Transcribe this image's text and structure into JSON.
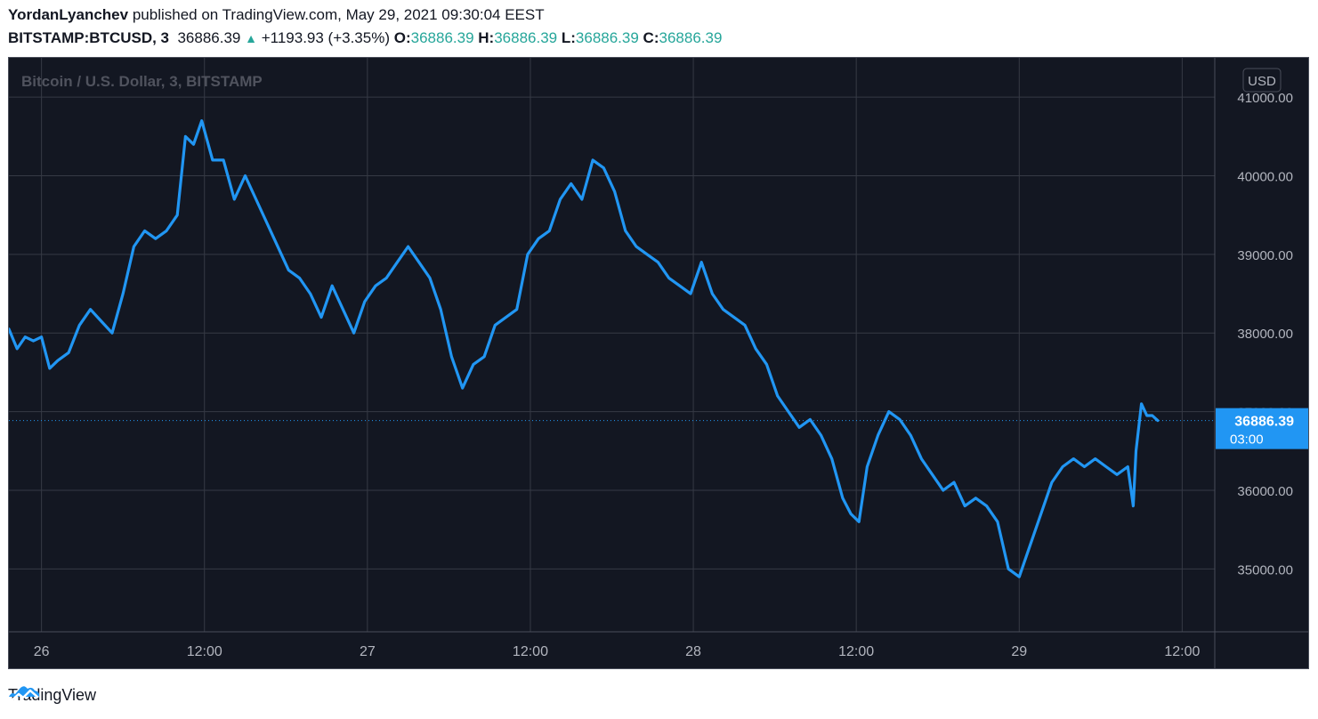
{
  "header": {
    "author": "YordanLyanchev",
    "published_text": "published on TradingView.com, May 29, 2021 09:30:04 EEST",
    "symbol": "BITSTAMP:BTCUSD, 3",
    "last": "36886.39",
    "change": "+1193.93 (+3.35%)",
    "open_label": "O:",
    "open": "36886.39",
    "high_label": "H:",
    "high": "36886.39",
    "low_label": "L:",
    "low": "36886.39",
    "close_label": "C:",
    "close": "36886.39"
  },
  "footer": {
    "brand": "TradingView"
  },
  "colors": {
    "line": "#2196f3",
    "background": "#131722",
    "grid": "#363a45",
    "up": "#26a69a"
  },
  "chart_data": {
    "type": "line",
    "title": "Bitcoin / U.S. Dollar, 3, BITSTAMP",
    "currency_badge": "USD",
    "ylim": [
      34200,
      41500
    ],
    "y_ticks": [
      35000,
      36000,
      37000,
      38000,
      39000,
      40000,
      41000
    ],
    "y_tick_labels": [
      "35000.00",
      "36000.00",
      "37000.00",
      "38000.00",
      "39000.00",
      "40000.00",
      "41000.00"
    ],
    "x_ticks": [
      "26",
      "12:00",
      "27",
      "12:00",
      "28",
      "12:00",
      "29",
      "12:00"
    ],
    "x_tick_hours": [
      24,
      36,
      48,
      60,
      72,
      84,
      96,
      108
    ],
    "x_range_hours": [
      21.6,
      110.4
    ],
    "last_price": 36886.39,
    "last_label": "36886.39",
    "countdown": "03:00",
    "x_hours": [
      21.6,
      22.2,
      22.8,
      23.4,
      24.0,
      24.6,
      25.2,
      26.0,
      26.8,
      27.6,
      28.4,
      29.2,
      30.0,
      30.8,
      31.6,
      32.4,
      33.2,
      34.0,
      34.6,
      35.2,
      35.8,
      36.6,
      37.4,
      38.2,
      39.0,
      39.8,
      40.6,
      41.4,
      42.2,
      43.0,
      43.8,
      44.6,
      45.4,
      46.2,
      47.0,
      47.8,
      48.6,
      49.4,
      50.2,
      51.0,
      51.8,
      52.6,
      53.4,
      54.2,
      55.0,
      55.8,
      56.6,
      57.4,
      58.2,
      59.0,
      59.8,
      60.6,
      61.4,
      62.2,
      63.0,
      63.8,
      64.6,
      65.4,
      66.2,
      67.0,
      67.8,
      68.6,
      69.4,
      70.2,
      71.0,
      71.8,
      72.6,
      73.4,
      74.2,
      75.0,
      75.8,
      76.6,
      77.4,
      78.2,
      79.0,
      79.8,
      80.6,
      81.4,
      82.2,
      83.0,
      83.6,
      84.2,
      84.8,
      85.6,
      86.4,
      87.2,
      88.0,
      88.8,
      89.6,
      90.4,
      91.2,
      92.0,
      92.8,
      93.6,
      94.4,
      95.2,
      96.0,
      96.8,
      97.6,
      98.4,
      99.2,
      100.0,
      100.8,
      101.6,
      102.4,
      103.2,
      104.0,
      104.4,
      104.6,
      105.0,
      105.4,
      105.8,
      106.2
    ],
    "values": [
      38050,
      37800,
      37950,
      37900,
      37950,
      37550,
      37650,
      37750,
      38100,
      38300,
      38150,
      38000,
      38500,
      39100,
      39300,
      39200,
      39300,
      39500,
      40500,
      40400,
      40700,
      40200,
      40200,
      39700,
      40000,
      39700,
      39400,
      39100,
      38800,
      38700,
      38500,
      38200,
      38600,
      38300,
      38000,
      38400,
      38600,
      38700,
      38900,
      39100,
      38900,
      38700,
      38300,
      37700,
      37300,
      37600,
      37700,
      38100,
      38200,
      38300,
      39000,
      39200,
      39300,
      39700,
      39900,
      39700,
      40200,
      40100,
      39800,
      39300,
      39100,
      39000,
      38900,
      38700,
      38600,
      38500,
      38900,
      38500,
      38300,
      38200,
      38100,
      37800,
      37600,
      37200,
      37000,
      36800,
      36900,
      36700,
      36400,
      35900,
      35700,
      35600,
      36300,
      36700,
      37000,
      36900,
      36700,
      36400,
      36200,
      36000,
      36100,
      35800,
      35900,
      35800,
      35600,
      35000,
      34900,
      35300,
      35700,
      36100,
      36300,
      36400,
      36300,
      36400,
      36300,
      36200,
      36300,
      35800,
      36500,
      37100,
      36950,
      36950,
      36886.39
    ]
  }
}
